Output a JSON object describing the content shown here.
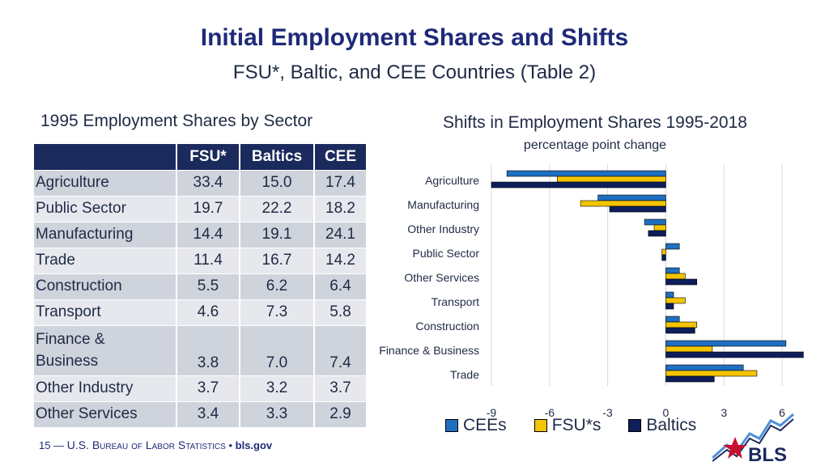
{
  "header": {
    "title": "Initial Employment Shares and Shifts",
    "subtitle": "FSU*, Baltic, and CEE Countries (Table 2)"
  },
  "table": {
    "heading": "1995 Employment Shares by Sector",
    "columns": [
      "",
      "FSU*",
      "Baltics",
      "CEE"
    ],
    "rows": [
      {
        "sector": "Agriculture",
        "fsu": "33.4",
        "baltics": "15.0",
        "cee": "17.4"
      },
      {
        "sector": "Public Sector",
        "fsu": "19.7",
        "baltics": "22.2",
        "cee": "18.2"
      },
      {
        "sector": "Manufacturing",
        "fsu": "14.4",
        "baltics": "19.1",
        "cee": "24.1"
      },
      {
        "sector": "Trade",
        "fsu": "11.4",
        "baltics": "16.7",
        "cee": "14.2"
      },
      {
        "sector": "Construction",
        "fsu": "5.5",
        "baltics": "6.2",
        "cee": "6.4"
      },
      {
        "sector": "Transport",
        "fsu": "4.6",
        "baltics": "7.3",
        "cee": "5.8"
      },
      {
        "sector_line1": "Finance &",
        "sector_line2": "Business",
        "fsu": "3.8",
        "baltics": "7.0",
        "cee": "7.4"
      },
      {
        "sector": "Other Industry",
        "fsu": "3.7",
        "baltics": "3.2",
        "cee": "3.7"
      },
      {
        "sector": "Other Services",
        "fsu": "3.4",
        "baltics": "3.3",
        "cee": "2.9"
      }
    ]
  },
  "chart_data": {
    "type": "bar",
    "orientation": "horizontal",
    "title": "Shifts in Employment Shares 1995-2018",
    "subtitle": "percentage point change",
    "categories": [
      "Agriculture",
      "Manufacturing",
      "Other Industry",
      "Public Sector",
      "Other Services",
      "Transport",
      "Construction",
      "Finance & Business",
      "Trade"
    ],
    "series": [
      {
        "name": "CEEs",
        "color": "#1f6fc0",
        "values": [
          -8.2,
          -3.5,
          -1.1,
          0.7,
          0.7,
          0.4,
          0.7,
          6.2,
          4.0
        ]
      },
      {
        "name": "FSU*s",
        "color": "#f5c400",
        "values": [
          -5.6,
          -4.4,
          -0.6,
          -0.2,
          1.0,
          1.0,
          1.6,
          2.4,
          4.7
        ]
      },
      {
        "name": "Baltics",
        "color": "#0d1e5a",
        "values": [
          -9.0,
          -2.9,
          -0.9,
          -0.2,
          1.6,
          0.4,
          1.5,
          7.1,
          2.5
        ]
      }
    ],
    "xlim": [
      -9,
      7
    ],
    "x_ticks": [
      -9,
      -6,
      -3,
      0,
      3,
      6
    ],
    "grid": true,
    "legend": "bottom"
  },
  "footer": {
    "page": "15",
    "dash": "—",
    "org": "U.S. Bureau of Labor Statistics",
    "bullet": "•",
    "site": "bls.gov"
  },
  "logo": {
    "text": "BLS",
    "colors": {
      "red": "#c8102e",
      "navy": "#1b2a5c",
      "blue": "#4f8fd8"
    }
  }
}
